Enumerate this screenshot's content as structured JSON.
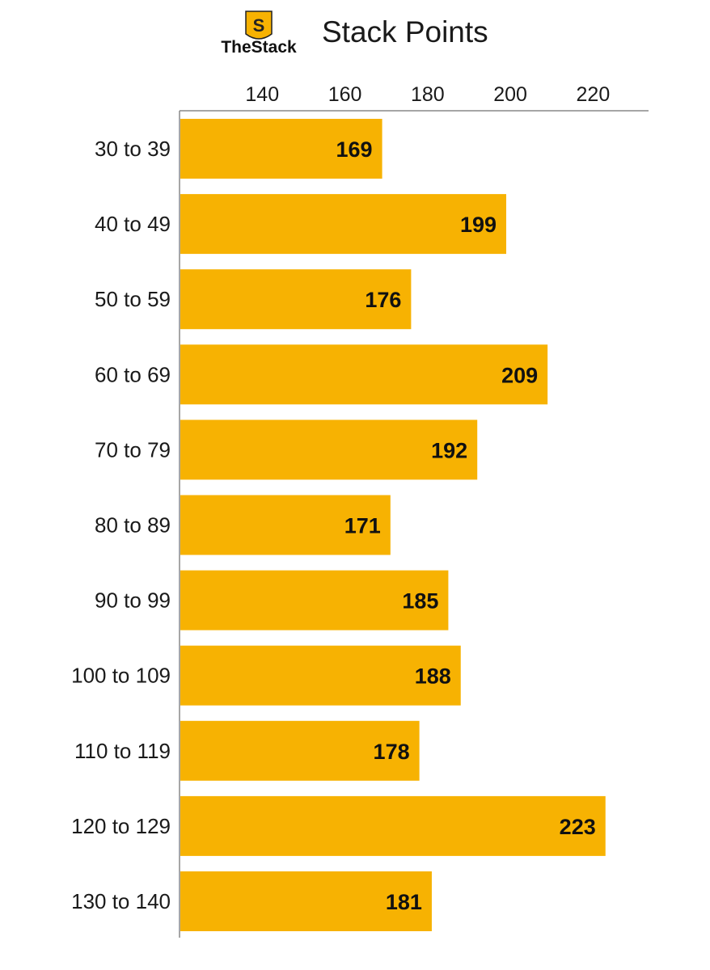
{
  "brand": {
    "name": "TheStack",
    "logo_letter": "S"
  },
  "colors": {
    "bar": "#F7B202",
    "axis": "#888888",
    "text": "#1a1a1a",
    "logo_fill": "#F7B202",
    "logo_dark": "#222222"
  },
  "chart_data": {
    "type": "bar",
    "orientation": "horizontal",
    "title": "Stack Points",
    "xlabel": "",
    "ylabel": "",
    "xlim": [
      120,
      230
    ],
    "xticks": [
      140,
      160,
      180,
      200,
      220
    ],
    "xtick_labels": [
      "140",
      "160",
      "180",
      "200",
      "220"
    ],
    "axis_position": "top",
    "grid": false,
    "categories": [
      "30 to 39",
      "40 to 49",
      "50 to 59",
      "60 to 69",
      "70 to 79",
      "80 to 89",
      "90 to 99",
      "100 to 109",
      "110 to 119",
      "120 to 129",
      "130 to 140"
    ],
    "values": [
      169,
      199,
      176,
      209,
      192,
      171,
      185,
      188,
      178,
      223,
      181
    ],
    "value_labels": [
      "169",
      "199",
      "176",
      "209",
      "192",
      "171",
      "185",
      "188",
      "178",
      "223",
      "181"
    ]
  }
}
